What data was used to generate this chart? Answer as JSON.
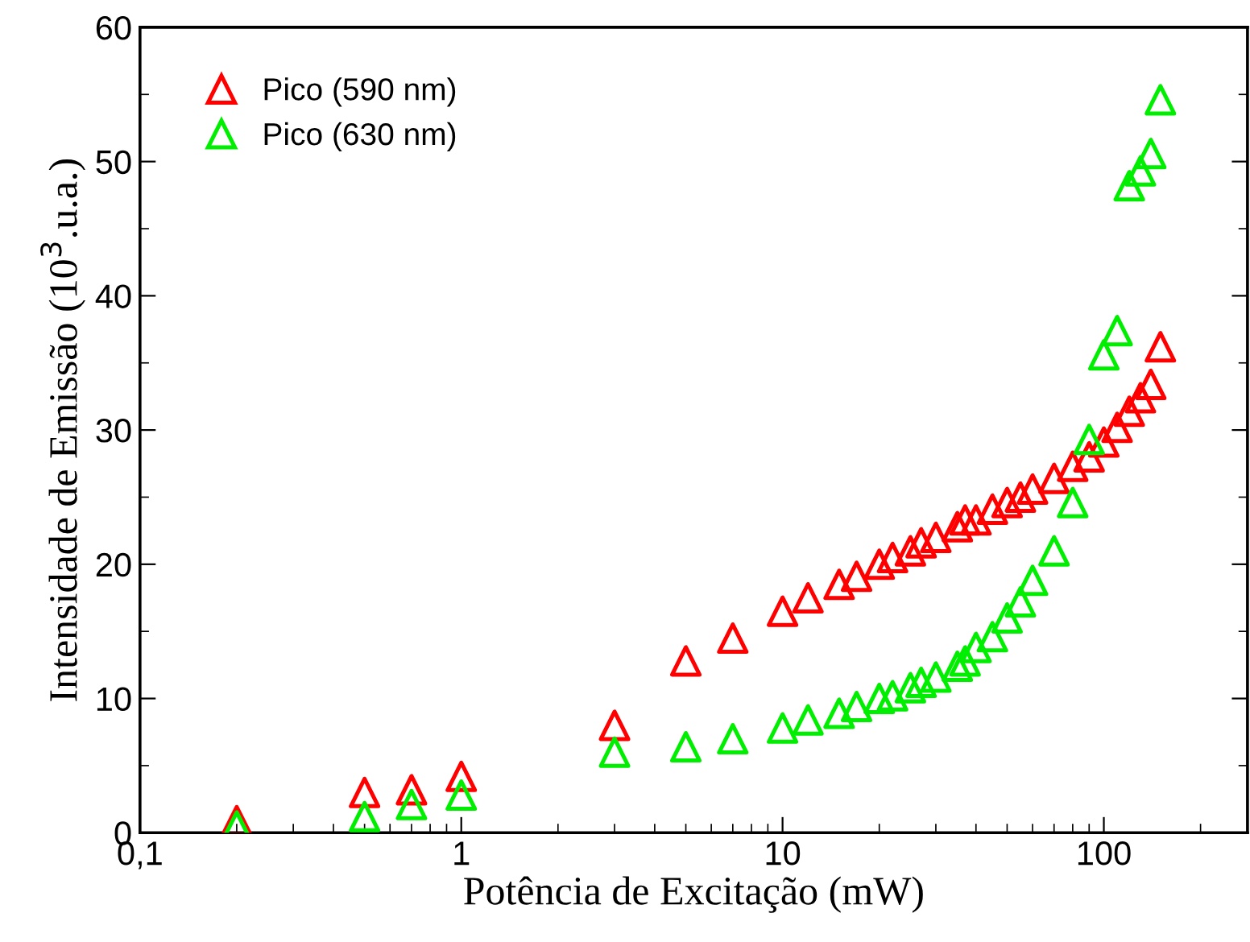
{
  "chart_data": {
    "type": "scatter",
    "xlabel": "Potência de Excitação (mW)",
    "ylabel": "Intensidade de Emissão (10$^{3}$.u.a.)",
    "x": [
      0.2,
      0.5,
      0.7,
      1,
      3,
      5,
      7,
      10,
      12,
      15,
      17,
      20,
      22,
      25,
      27,
      30,
      35,
      37,
      40,
      45,
      50,
      55,
      60,
      70,
      80,
      90,
      100,
      110,
      120,
      130,
      140,
      150
    ],
    "series": [
      {
        "name": "Pico (590 nm)",
        "color": "#ff0000",
        "values": [
          0.9,
          3.0,
          3.2,
          4.2,
          8.0,
          12.8,
          14.5,
          16.5,
          17.5,
          18.5,
          19.1,
          20.0,
          20.5,
          21.0,
          21.6,
          22.0,
          22.8,
          23.3,
          23.3,
          24.1,
          24.6,
          25.0,
          25.6,
          26.4,
          27.3,
          28.0,
          29.1,
          30.2,
          31.4,
          32.4,
          33.4,
          36.2
        ]
      },
      {
        "name": "Pico (630 nm)",
        "color": "#00ee00",
        "values": [
          0.5,
          1.2,
          2.1,
          2.8,
          6.0,
          6.4,
          7.0,
          7.8,
          8.4,
          8.9,
          9.4,
          10.0,
          10.2,
          10.8,
          11.2,
          11.6,
          12.4,
          12.8,
          13.8,
          14.6,
          16.0,
          17.2,
          18.8,
          21.0,
          24.6,
          29.3,
          35.6,
          37.4,
          48.2,
          49.3,
          50.6,
          54.6
        ]
      }
    ],
    "log": "x",
    "xlim": [
      0.1,
      280
    ],
    "xticks": [
      {
        "value": 0.1,
        "label": "0,1"
      },
      1,
      10,
      100
    ],
    "ylim": [
      0,
      60
    ],
    "yticks": [
      0,
      10,
      20,
      30,
      40,
      50,
      60
    ],
    "marker": "triangle",
    "legend": "top left",
    "grid": false
  }
}
